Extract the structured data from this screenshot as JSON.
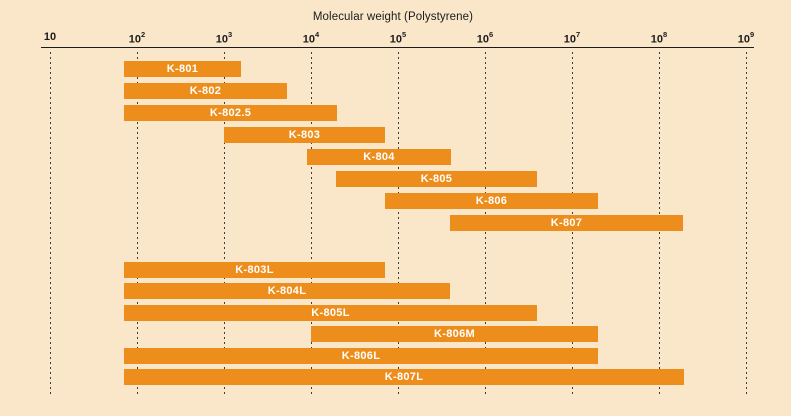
{
  "colors": {
    "background": "#fae7ca",
    "bar": "#ed8e1c",
    "bar_text": "#ffffff",
    "axis": "#1b1b1b",
    "gridline": "#3c3c3c"
  },
  "chart_data": {
    "type": "bar",
    "subtype": "horizontal-range-bars",
    "title": "Molecular weight (Polystyrene)",
    "x_axis": {
      "scale": "log10",
      "min": 10,
      "max": 1000000000,
      "tick_base": "10",
      "tick_exponents": [
        "",
        "2",
        "3",
        "4",
        "5",
        "6",
        "7",
        "8",
        "9"
      ],
      "tick_values": [
        10,
        100,
        1000,
        10000,
        100000,
        1000000,
        10000000,
        100000000,
        1000000000
      ],
      "grid": "dashed-vertical"
    },
    "legend": "none",
    "bars": [
      {
        "label": "K-801",
        "group": "upper",
        "row": 0,
        "log_start": 1.85,
        "log_end": 3.2,
        "mw_start": 70,
        "mw_end": 1500
      },
      {
        "label": "K-802",
        "group": "upper",
        "row": 1,
        "log_start": 1.85,
        "log_end": 3.72,
        "mw_start": 70,
        "mw_end": 5000
      },
      {
        "label": "K-802.5",
        "group": "upper",
        "row": 2,
        "log_start": 1.85,
        "log_end": 4.3,
        "mw_start": 70,
        "mw_end": 20000
      },
      {
        "label": "K-803",
        "group": "upper",
        "row": 3,
        "log_start": 3.0,
        "log_end": 4.85,
        "mw_start": 1000,
        "mw_end": 70000
      },
      {
        "label": "K-804",
        "group": "upper",
        "row": 4,
        "log_start": 3.95,
        "log_end": 5.6,
        "mw_start": 9000,
        "mw_end": 400000
      },
      {
        "label": "K-805",
        "group": "upper",
        "row": 5,
        "log_start": 4.29,
        "log_end": 6.6,
        "mw_start": 20000,
        "mw_end": 4000000
      },
      {
        "label": "K-806",
        "group": "upper",
        "row": 6,
        "log_start": 4.85,
        "log_end": 7.3,
        "mw_start": 70000,
        "mw_end": 20000000
      },
      {
        "label": "K-807",
        "group": "upper",
        "row": 7,
        "log_start": 5.6,
        "log_end": 8.28,
        "mw_start": 400000,
        "mw_end": 200000000
      },
      {
        "label": "K-803L",
        "group": "lower",
        "row": 0,
        "log_start": 1.85,
        "log_end": 4.85,
        "mw_start": 70,
        "mw_end": 70000
      },
      {
        "label": "K-804L",
        "group": "lower",
        "row": 1,
        "log_start": 1.85,
        "log_end": 5.6,
        "mw_start": 70,
        "mw_end": 400000
      },
      {
        "label": "K-805L",
        "group": "lower",
        "row": 2,
        "log_start": 1.85,
        "log_end": 6.6,
        "mw_start": 70,
        "mw_end": 4000000
      },
      {
        "label": "K-806M",
        "group": "lower",
        "row": 3,
        "log_start": 4.0,
        "log_end": 7.3,
        "mw_start": 10000,
        "mw_end": 20000000
      },
      {
        "label": "K-806L",
        "group": "lower",
        "row": 4,
        "log_start": 1.85,
        "log_end": 7.3,
        "mw_start": 70,
        "mw_end": 20000000
      },
      {
        "label": "K-807L",
        "group": "lower",
        "row": 5,
        "log_start": 1.85,
        "log_end": 8.29,
        "mw_start": 70,
        "mw_end": 200000000
      }
    ]
  }
}
